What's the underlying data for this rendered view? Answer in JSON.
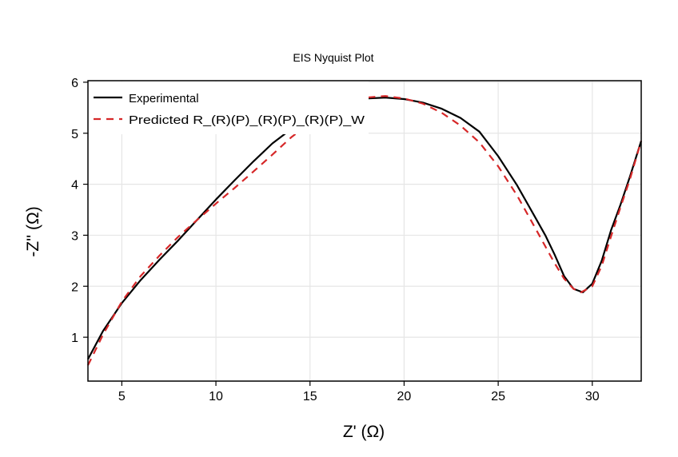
{
  "chart_data": {
    "type": "line",
    "title": "EIS Nyquist Plot",
    "xlabel": "Z' (Ω)",
    "ylabel": "-Z'' (Ω)",
    "xlim": [
      3.2,
      32.6
    ],
    "ylim": [
      0.14,
      6.03
    ],
    "xticks": [
      5,
      10,
      15,
      20,
      25,
      30
    ],
    "yticks": [
      1,
      2,
      3,
      4,
      5,
      6
    ],
    "grid": true,
    "legend_position": "top-left",
    "series": [
      {
        "name": "Experimental",
        "color": "#000000",
        "style": "solid",
        "x": [
          3.2,
          4,
          5,
          6,
          7,
          8,
          9,
          10,
          11,
          12,
          13,
          14,
          15,
          16,
          17,
          18,
          19,
          20,
          21,
          22,
          23,
          24,
          25,
          26,
          27,
          27.5,
          28,
          28.5,
          29,
          29.5,
          30,
          30.5,
          31,
          31.5,
          32,
          32.6
        ],
        "y": [
          0.57,
          1.12,
          1.67,
          2.12,
          2.52,
          2.9,
          3.3,
          3.7,
          4.08,
          4.45,
          4.8,
          5.08,
          5.3,
          5.47,
          5.6,
          5.68,
          5.7,
          5.67,
          5.6,
          5.48,
          5.3,
          5.03,
          4.55,
          3.98,
          3.33,
          3.0,
          2.62,
          2.2,
          1.95,
          1.88,
          2.05,
          2.5,
          3.1,
          3.6,
          4.15,
          4.85
        ]
      },
      {
        "name": "Predicted R_(R)(P)_(R)(P)_(R)(P)_W",
        "color": "#d62728",
        "style": "dashed",
        "x": [
          3.2,
          4,
          5,
          6,
          7,
          8,
          9,
          10,
          11,
          12,
          13,
          14,
          15,
          16,
          17,
          18,
          19,
          20,
          21,
          22,
          23,
          24,
          25,
          26,
          27,
          28,
          28.5,
          29,
          29.4,
          30,
          30.5,
          31,
          31.5,
          32,
          32.6
        ],
        "y": [
          0.45,
          1.05,
          1.7,
          2.2,
          2.6,
          2.97,
          3.3,
          3.62,
          3.93,
          4.25,
          4.58,
          4.92,
          5.2,
          5.42,
          5.6,
          5.7,
          5.73,
          5.68,
          5.58,
          5.4,
          5.15,
          4.82,
          4.35,
          3.78,
          3.12,
          2.45,
          2.15,
          1.95,
          1.88,
          2.0,
          2.4,
          2.98,
          3.55,
          4.1,
          4.85
        ]
      }
    ]
  }
}
